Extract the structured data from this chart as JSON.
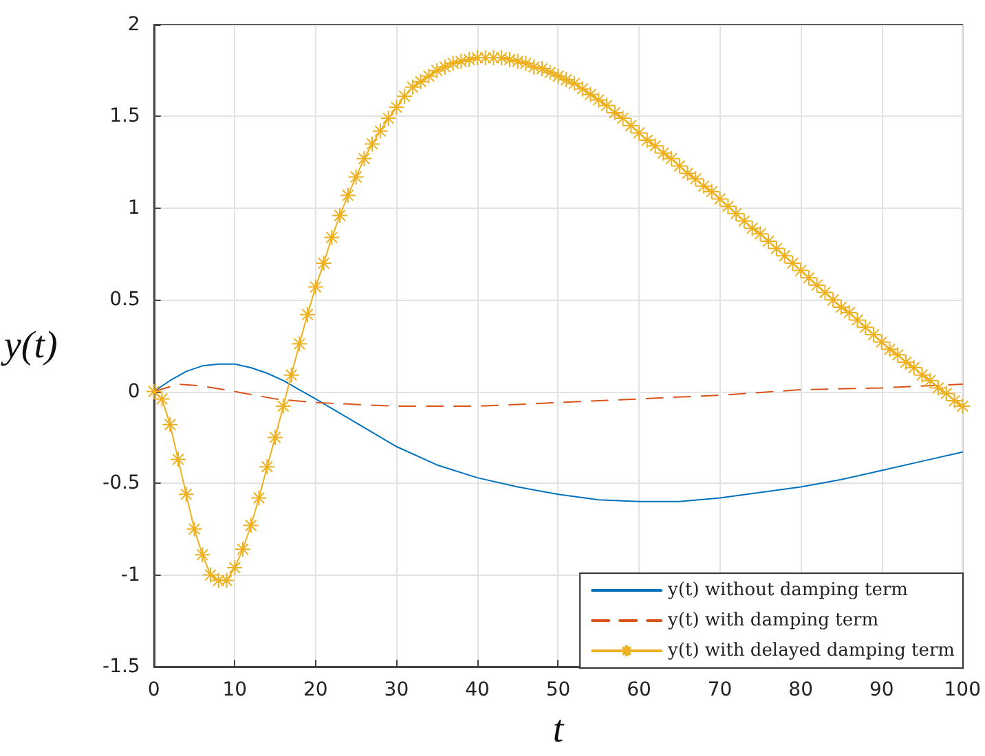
{
  "chart_data": {
    "type": "line",
    "xlabel": "t",
    "ylabel": "y(t)",
    "xlim": [
      0,
      100
    ],
    "xticks": [
      0,
      10,
      20,
      30,
      40,
      50,
      60,
      70,
      80,
      90,
      100
    ],
    "ylim": [
      -1.5,
      2
    ],
    "yticks": [
      -1.5,
      -1,
      -0.5,
      0,
      0.5,
      1,
      1.5,
      2
    ],
    "grid": true,
    "legend": "bottom right",
    "series": [
      {
        "name": "y(t) without damping term",
        "color": "#0072bd",
        "marker": "none",
        "line_style": "solid",
        "x": [
          0,
          2,
          4,
          6,
          8,
          10,
          12,
          14,
          16,
          18,
          20,
          25,
          30,
          35,
          40,
          45,
          50,
          55,
          60,
          65,
          70,
          75,
          80,
          85,
          90,
          95,
          100
        ],
        "values": [
          0,
          0.06,
          0.11,
          0.14,
          0.15,
          0.15,
          0.13,
          0.1,
          0.06,
          0.01,
          -0.04,
          -0.17,
          -0.3,
          -0.4,
          -0.47,
          -0.52,
          -0.56,
          -0.59,
          -0.6,
          -0.6,
          -0.58,
          -0.55,
          -0.52,
          -0.48,
          -0.43,
          -0.38,
          -0.33
        ]
      },
      {
        "name": "y(t) with damping term",
        "color": "#d95319",
        "marker": "none",
        "line_style": "dashed",
        "x": [
          0,
          3,
          6,
          10,
          15,
          20,
          25,
          30,
          40,
          50,
          60,
          70,
          80,
          90,
          100
        ],
        "values": [
          0,
          0.04,
          0.03,
          0,
          -0.04,
          -0.06,
          -0.07,
          -0.08,
          -0.08,
          -0.06,
          -0.04,
          -0.02,
          0.01,
          0.02,
          0.04
        ]
      },
      {
        "name": "y(t) with delayed damping term",
        "color": "#edb120",
        "marker": "cross",
        "line_style": "solid",
        "x": [
          0,
          1,
          2,
          3,
          4,
          5,
          6,
          7,
          8,
          9,
          10,
          11,
          12,
          13,
          14,
          15,
          16,
          17,
          18,
          19,
          20,
          21,
          22,
          23,
          24,
          25,
          26,
          27,
          28,
          29,
          30,
          31,
          32,
          33,
          34,
          35,
          36,
          37,
          38,
          39,
          40,
          41,
          42,
          43,
          44,
          45,
          46,
          47,
          48,
          49,
          50,
          51,
          52,
          53,
          54,
          55,
          56,
          57,
          58,
          59,
          60,
          61,
          62,
          63,
          64,
          65,
          66,
          67,
          68,
          69,
          70,
          71,
          72,
          73,
          74,
          75,
          76,
          77,
          78,
          79,
          80,
          81,
          82,
          83,
          84,
          85,
          86,
          87,
          88,
          89,
          90,
          91,
          92,
          93,
          94,
          95,
          96,
          97,
          98,
          99,
          100
        ],
        "values": [
          0,
          -0.04,
          -0.18,
          -0.37,
          -0.56,
          -0.75,
          -0.89,
          -1,
          -1.03,
          -1.03,
          -0.96,
          -0.86,
          -0.73,
          -0.58,
          -0.41,
          -0.25,
          -0.08,
          0.09,
          0.26,
          0.42,
          0.57,
          0.7,
          0.84,
          0.96,
          1.07,
          1.17,
          1.27,
          1.35,
          1.42,
          1.49,
          1.55,
          1.61,
          1.66,
          1.69,
          1.72,
          1.75,
          1.77,
          1.79,
          1.8,
          1.81,
          1.82,
          1.82,
          1.82,
          1.82,
          1.81,
          1.8,
          1.79,
          1.77,
          1.76,
          1.74,
          1.72,
          1.7,
          1.68,
          1.65,
          1.62,
          1.59,
          1.56,
          1.52,
          1.49,
          1.45,
          1.41,
          1.37,
          1.34,
          1.3,
          1.27,
          1.23,
          1.19,
          1.16,
          1.12,
          1.09,
          1.05,
          1.01,
          0.97,
          0.93,
          0.89,
          0.86,
          0.82,
          0.78,
          0.74,
          0.7,
          0.66,
          0.62,
          0.58,
          0.54,
          0.5,
          0.46,
          0.43,
          0.39,
          0.35,
          0.31,
          0.27,
          0.23,
          0.2,
          0.16,
          0.13,
          0.09,
          0.06,
          0.02,
          -0.01,
          -0.05,
          -0.08
        ]
      }
    ]
  }
}
